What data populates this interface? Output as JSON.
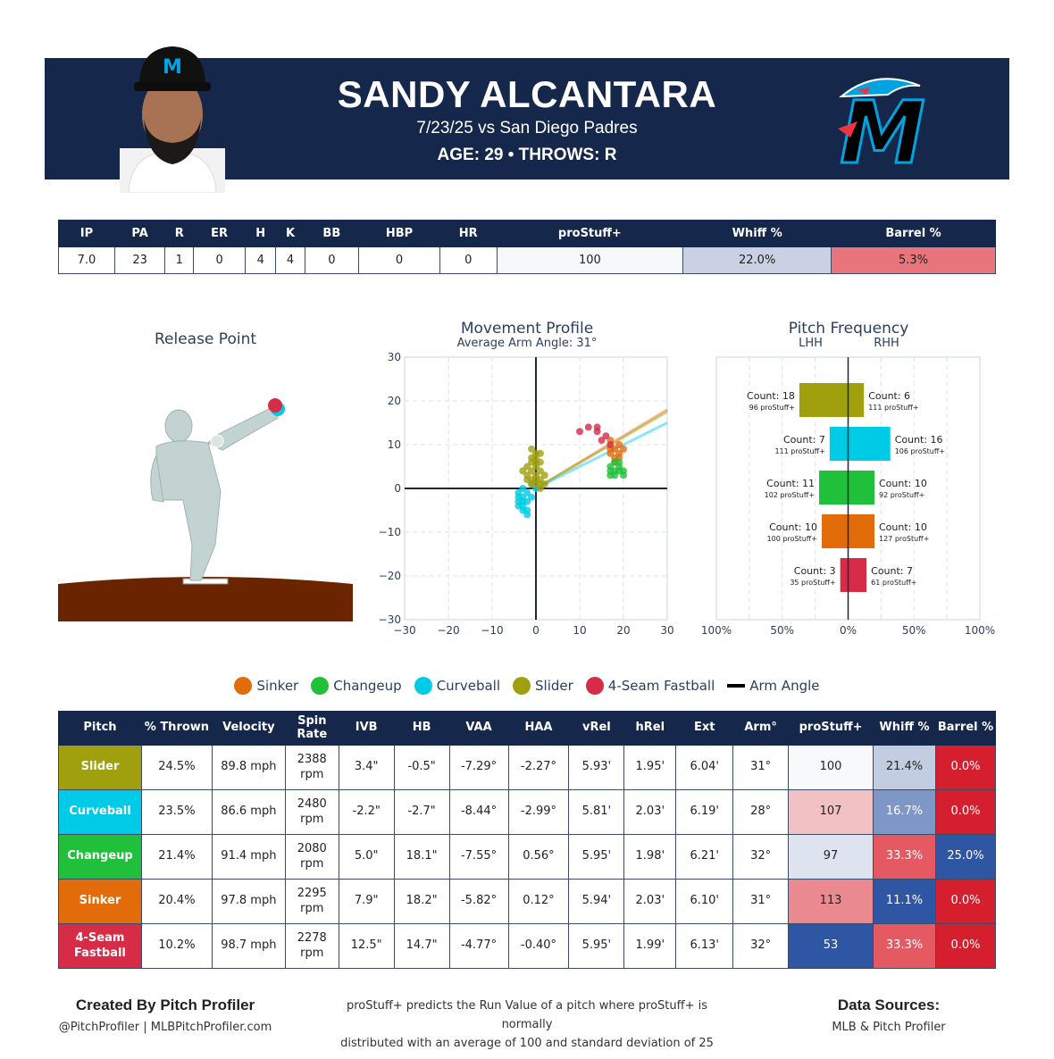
{
  "header": {
    "player_name": "SANDY ALCANTARA",
    "game_line": "7/23/25 vs San Diego Padres",
    "age_line": "AGE: 29 • THROWS: R",
    "cap_logo_letter": "M",
    "team_logo_letter": "M",
    "colors": {
      "navy": "#15284b",
      "teal": "#00a3e0",
      "red": "#ef3340"
    }
  },
  "stats": {
    "headers": [
      "IP",
      "PA",
      "R",
      "ER",
      "H",
      "K",
      "BB",
      "HBP",
      "HR",
      "proStuff+",
      "Whiff %",
      "Barrel %"
    ],
    "values": [
      "7.0",
      "23",
      "1",
      "0",
      "4",
      "4",
      "0",
      "0",
      "0",
      "100",
      "22.0%",
      "5.3%"
    ],
    "cell_colors": [
      "#ffffff",
      "#ffffff",
      "#ffffff",
      "#ffffff",
      "#ffffff",
      "#ffffff",
      "#ffffff",
      "#ffffff",
      "#ffffff",
      "#f7f8fa",
      "#c9d1e3",
      "#e8757c"
    ]
  },
  "release_point": {
    "title": "Release Point",
    "ball_colors": [
      "#00c8e6",
      "#d62c48"
    ]
  },
  "movement": {
    "title": "Movement Profile",
    "subtitle": "Average Arm Angle: 31°",
    "ticks": [
      "−30",
      "−20",
      "−10",
      "0",
      "10",
      "20",
      "30"
    ]
  },
  "frequency": {
    "title": "Pitch Frequency",
    "left_label": "LHH",
    "right_label": "RHH",
    "x_ticks": [
      "100%",
      "50%",
      "0%",
      "50%",
      "100%"
    ]
  },
  "chart_data": [
    {
      "type": "scatter",
      "title": "Movement Profile",
      "subtitle": "Average Arm Angle: 31°",
      "xlim": [
        -30,
        30
      ],
      "ylim": [
        -30,
        30
      ],
      "grid": true,
      "series": [
        {
          "name": "Sinker",
          "color": "#e36c0a",
          "points": [
            [
              17,
              8
            ],
            [
              18,
              9
            ],
            [
              19,
              10
            ],
            [
              18,
              7
            ],
            [
              17,
              11
            ],
            [
              19,
              8
            ],
            [
              18,
              6
            ],
            [
              20,
              9
            ],
            [
              17,
              9
            ],
            [
              19,
              7
            ]
          ]
        },
        {
          "name": "Changeup",
          "color": "#21c03a",
          "points": [
            [
              17,
              3
            ],
            [
              18,
              4
            ],
            [
              19,
              5
            ],
            [
              20,
              3
            ],
            [
              18,
              6
            ],
            [
              19,
              4
            ],
            [
              17,
              5
            ],
            [
              20,
              4
            ],
            [
              18,
              3
            ],
            [
              19,
              6
            ],
            [
              17,
              4
            ]
          ]
        },
        {
          "name": "Curveball",
          "color": "#00cbe6",
          "points": [
            [
              -4,
              -1
            ],
            [
              -3,
              -2
            ],
            [
              -2,
              -3
            ],
            [
              -4,
              -4
            ],
            [
              -3,
              -5
            ],
            [
              -2,
              -6
            ],
            [
              -1,
              1
            ],
            [
              -3,
              0
            ],
            [
              -4,
              -3
            ],
            [
              -2,
              -1
            ],
            [
              -1,
              -2
            ],
            [
              -3,
              -4
            ],
            [
              -2,
              -5
            ],
            [
              -4,
              -2
            ],
            [
              -3,
              -3
            ],
            [
              0,
              0
            ]
          ]
        },
        {
          "name": "Slider",
          "color": "#a0a00f",
          "points": [
            [
              -1,
              9
            ],
            [
              0,
              8
            ],
            [
              1,
              6
            ],
            [
              -2,
              5
            ],
            [
              0,
              3
            ],
            [
              1,
              2
            ],
            [
              -1,
              1
            ],
            [
              0,
              7
            ],
            [
              -2,
              3
            ],
            [
              1,
              4
            ],
            [
              0,
              5
            ],
            [
              -1,
              6
            ],
            [
              -3,
              4
            ],
            [
              0,
              2
            ],
            [
              2,
              1
            ],
            [
              1,
              8
            ],
            [
              -1,
              4
            ],
            [
              0,
              1
            ],
            [
              -2,
              2
            ],
            [
              1,
              0
            ],
            [
              -1,
              7
            ],
            [
              0,
              6
            ],
            [
              2,
              3
            ],
            [
              1,
              1
            ],
            [
              -1,
              2
            ]
          ]
        },
        {
          "name": "4-Seam Fastball",
          "color": "#d62c48",
          "points": [
            [
              10,
              13
            ],
            [
              12,
              14
            ],
            [
              14,
              14
            ],
            [
              14,
              13
            ],
            [
              15,
              11
            ],
            [
              17,
              10
            ],
            [
              16,
              12
            ]
          ]
        }
      ],
      "arm_angle_lines": [
        {
          "name": "Arm Angle",
          "color": "#e36c0a",
          "from": [
            0,
            0
          ],
          "to": [
            30,
            18
          ]
        },
        {
          "name": "Arm Angle",
          "color": "#a0a00f",
          "from": [
            0,
            0
          ],
          "to": [
            30,
            17.5
          ]
        },
        {
          "name": "Arm Angle",
          "color": "#00cbe6",
          "from": [
            0,
            0
          ],
          "to": [
            30,
            15
          ]
        }
      ]
    },
    {
      "type": "bar",
      "title": "Pitch Frequency",
      "orientation": "horizontal-diverging",
      "xlabel_left": "LHH",
      "xlabel_right": "RHH",
      "xlim": [
        -100,
        100
      ],
      "series": [
        {
          "name": "Slider",
          "color": "#a0a00f",
          "lhh_pct": 37,
          "rhh_pct": 12,
          "lhh_count": "Count: 18",
          "lhh_stuff": "96 proStuff+",
          "rhh_count": "Count: 6",
          "rhh_stuff": "111 proStuff+"
        },
        {
          "name": "Curveball",
          "color": "#00cbe6",
          "lhh_pct": 14,
          "rhh_pct": 32,
          "lhh_count": "Count: 7",
          "lhh_stuff": "111 proStuff+",
          "rhh_count": "Count: 16",
          "rhh_stuff": "106 proStuff+"
        },
        {
          "name": "Changeup",
          "color": "#21c03a",
          "lhh_pct": 22,
          "rhh_pct": 20,
          "lhh_count": "Count: 11",
          "lhh_stuff": "102 proStuff+",
          "rhh_count": "Count: 10",
          "rhh_stuff": "92 proStuff+"
        },
        {
          "name": "Sinker",
          "color": "#e36c0a",
          "lhh_pct": 20,
          "rhh_pct": 20,
          "lhh_count": "Count: 10",
          "lhh_stuff": "100 proStuff+",
          "rhh_count": "Count: 10",
          "rhh_stuff": "127 proStuff+"
        },
        {
          "name": "4-Seam Fastball",
          "color": "#d62c48",
          "lhh_pct": 6,
          "rhh_pct": 14,
          "lhh_count": "Count: 3",
          "lhh_stuff": "35 proStuff+",
          "rhh_count": "Count: 7",
          "rhh_stuff": "61 proStuff+"
        }
      ]
    }
  ],
  "legend": [
    {
      "label": "Sinker",
      "color": "#e36c0a",
      "kind": "dot"
    },
    {
      "label": "Changeup",
      "color": "#21c03a",
      "kind": "dot"
    },
    {
      "label": "Curveball",
      "color": "#00cbe6",
      "kind": "dot"
    },
    {
      "label": "Slider",
      "color": "#a0a00f",
      "kind": "dot"
    },
    {
      "label": "4-Seam Fastball",
      "color": "#d62c48",
      "kind": "dot"
    },
    {
      "label": "Arm Angle",
      "color": "#000000",
      "kind": "line"
    }
  ],
  "pitch_table": {
    "headers": [
      "Pitch",
      "% Thrown",
      "Velocity",
      "Spin Rate",
      "IVB",
      "HB",
      "VAA",
      "HAA",
      "vRel",
      "hRel",
      "Ext",
      "Arm°",
      "proStuff+",
      "Whiff %",
      "Barrel %"
    ],
    "rows": [
      {
        "name": "Slider",
        "color": "#a0a00f",
        "cells": [
          "24.5%",
          "89.8 mph",
          "2388 rpm",
          "3.4\"",
          "-0.5\"",
          "-7.29°",
          "-2.27°",
          "5.93'",
          "1.95'",
          "6.04'",
          "31°",
          "100",
          "21.4%",
          "0.0%"
        ],
        "heat": [
          "#f7f9fb",
          "#c2cde2",
          "#d51f2f"
        ]
      },
      {
        "name": "Curveball",
        "color": "#00cbe6",
        "cells": [
          "23.5%",
          "86.6 mph",
          "2480 rpm",
          "-2.2\"",
          "-2.7\"",
          "-8.44°",
          "-2.99°",
          "5.81'",
          "2.03'",
          "6.19'",
          "28°",
          "107",
          "16.7%",
          "0.0%"
        ],
        "heat": [
          "#f1c1c4",
          "#7e97c6",
          "#d51f2f"
        ]
      },
      {
        "name": "Changeup",
        "color": "#21c03a",
        "cells": [
          "21.4%",
          "91.4 mph",
          "2080 rpm",
          "5.0\"",
          "18.1\"",
          "-7.55°",
          "0.56°",
          "5.95'",
          "1.98'",
          "6.21'",
          "32°",
          "97",
          "33.3%",
          "25.0%"
        ],
        "heat": [
          "#dee4ef",
          "#e55962",
          "#2e56a3"
        ]
      },
      {
        "name": "Sinker",
        "color": "#e36c0a",
        "cells": [
          "20.4%",
          "97.8 mph",
          "2295 rpm",
          "7.9\"",
          "18.2\"",
          "-5.82°",
          "0.12°",
          "5.94'",
          "2.03'",
          "6.10'",
          "31°",
          "113",
          "11.1%",
          "0.0%"
        ],
        "heat": [
          "#ea8a90",
          "#2e56a3",
          "#d51f2f"
        ]
      },
      {
        "name": "4-Seam Fastball",
        "color": "#d62c48",
        "cells": [
          "10.2%",
          "98.7 mph",
          "2278 rpm",
          "12.5\"",
          "14.7\"",
          "-4.77°",
          "-0.40°",
          "5.95'",
          "1.99'",
          "6.13'",
          "32°",
          "53",
          "33.3%",
          "0.0%"
        ],
        "heat": [
          "#2e56a3",
          "#e55962",
          "#d51f2f"
        ]
      }
    ]
  },
  "footer": {
    "created_by": "Created By Pitch Profiler",
    "handles": "@PitchProfiler | MLBPitchProfiler.com",
    "note_line1": "proStuff+ predicts the Run Value of a pitch where proStuff+ is normally",
    "note_line2": "distributed with an average of 100 and standard deviation of 25",
    "sources_title": "Data Sources:",
    "sources": "MLB & Pitch Profiler"
  }
}
